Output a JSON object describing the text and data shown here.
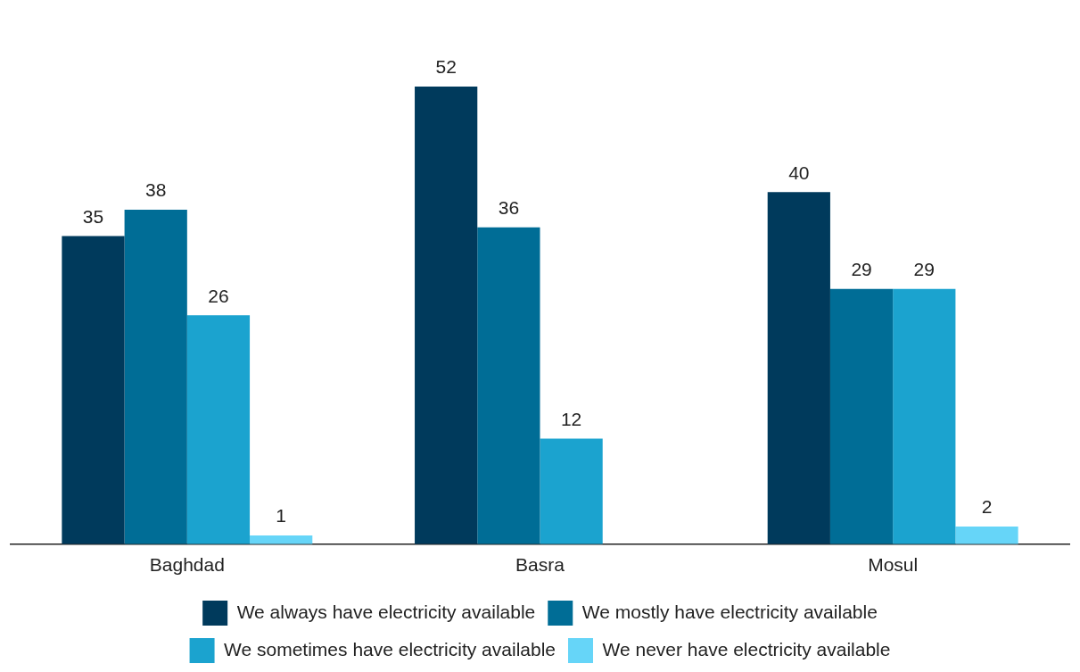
{
  "chart_data": {
    "type": "bar",
    "categories": [
      "Baghdad",
      "Basra",
      "Mosul"
    ],
    "series": [
      {
        "name": "We always have electricity available",
        "color": "#003a5c",
        "values": [
          35,
          52,
          40
        ]
      },
      {
        "name": "We mostly have electricity available",
        "color": "#006d96",
        "values": [
          38,
          36,
          29
        ]
      },
      {
        "name": "We sometimes have electricity available",
        "color": "#1ba3cf",
        "values": [
          26,
          12,
          29
        ]
      },
      {
        "name": "We never have electricity available",
        "color": "#66d5f8",
        "values": [
          1,
          null,
          2
        ]
      }
    ],
    "data_labels": true,
    "legend": "bottom",
    "grid": false,
    "tick_labels": "x"
  }
}
